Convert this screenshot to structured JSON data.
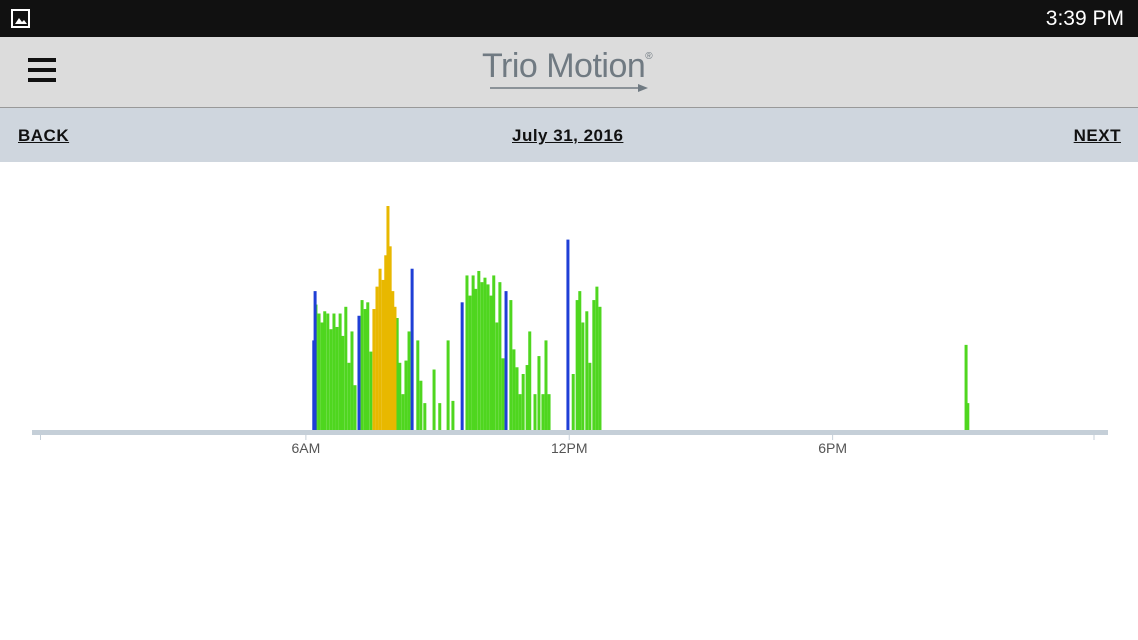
{
  "status_bar": {
    "time": "3:39 PM"
  },
  "header": {
    "logo": "Trio Motion",
    "logo_mark": "®"
  },
  "nav": {
    "back": "BACK",
    "date": "July 31, 2016",
    "next": "NEXT"
  },
  "chart_data": {
    "type": "bar",
    "xlim": [
      0,
      24
    ],
    "ylim": [
      0,
      100
    ],
    "xticks": [
      {
        "value": 6,
        "label": "6AM"
      },
      {
        "value": 12,
        "label": "12PM"
      },
      {
        "value": 18,
        "label": "6PM"
      }
    ],
    "series": [
      {
        "color": "#4fd61f",
        "x": [
          6.23,
          6.3,
          6.37,
          6.43,
          6.5,
          6.57,
          6.64,
          6.71,
          6.78,
          6.84,
          6.91,
          6.98,
          7.05,
          7.12,
          7.28,
          7.35,
          7.41,
          7.48,
          8.08,
          8.14,
          8.21,
          8.28,
          8.35,
          8.55,
          8.62,
          8.71,
          8.92,
          9.05,
          9.24,
          9.35,
          9.67,
          9.74,
          9.81,
          9.87,
          9.94,
          10.01,
          10.08,
          10.15,
          10.22,
          10.28,
          10.35,
          10.42,
          10.49,
          10.67,
          10.74,
          10.81,
          10.88,
          10.95,
          11.04,
          11.1,
          11.22,
          11.31,
          11.4,
          11.47,
          11.54,
          12.09,
          12.18,
          12.24,
          12.31,
          12.4,
          12.47,
          12.56,
          12.63,
          12.7,
          21.04,
          21.08
        ],
        "values": [
          56,
          52,
          48,
          53,
          52,
          45,
          52,
          46,
          52,
          42,
          55,
          30,
          44,
          20,
          58,
          54,
          57,
          35,
          50,
          30,
          16,
          31,
          44,
          40,
          22,
          12,
          27,
          12,
          40,
          13,
          69,
          60,
          69,
          63,
          71,
          66,
          68,
          65,
          60,
          69,
          48,
          66,
          32,
          58,
          36,
          28,
          16,
          25,
          29,
          44,
          16,
          33,
          16,
          40,
          16,
          25,
          58,
          62,
          48,
          53,
          30,
          58,
          64,
          55,
          38,
          12
        ]
      },
      {
        "color": "#1f3fd6",
        "x": [
          6.18,
          6.21,
          7.21,
          8.42,
          9.56,
          10.56,
          11.97
        ],
        "values": [
          40,
          62,
          51,
          72,
          57,
          62,
          85
        ]
      },
      {
        "color": "#e8b800",
        "x": [
          7.55,
          7.62,
          7.69,
          7.76,
          7.82,
          7.87,
          7.92,
          7.98,
          8.03
        ],
        "values": [
          54,
          64,
          72,
          67,
          78,
          100,
          82,
          62,
          55
        ]
      }
    ]
  }
}
